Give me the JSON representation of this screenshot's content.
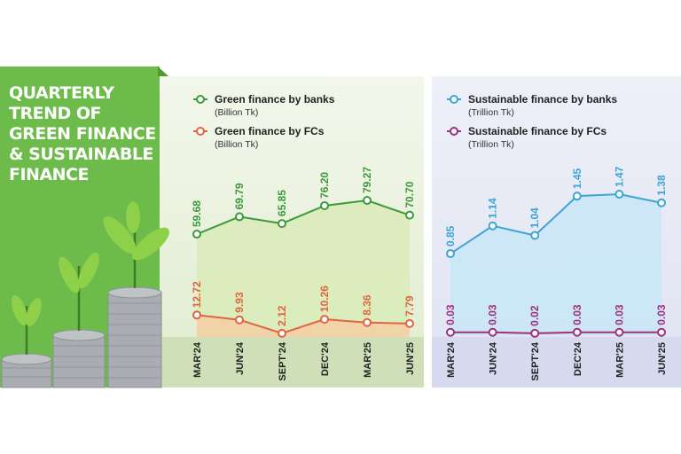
{
  "title": "QUARTERLY TREND OF GREEN FINANCE & SUSTAINABLE FINANCE",
  "chart_data": [
    {
      "type": "line",
      "categories": [
        "MAR'24",
        "JUN'24",
        "SEPT'24",
        "DEC'24",
        "MAR'25",
        "JUN'25"
      ],
      "series": [
        {
          "name": "Green finance by banks",
          "unit": "(Billion Tk)",
          "color": "#3c9a3c",
          "area_color": "#d9ebb8",
          "values": [
            59.68,
            69.79,
            65.85,
            76.2,
            79.27,
            70.7
          ],
          "value_labels": [
            "59.68",
            "69.79",
            "65.85",
            "76.20",
            "79.27",
            "70.70"
          ]
        },
        {
          "name": "Green finance by FCs",
          "unit": "(Billion Tk)",
          "color": "#e0643f",
          "area_color": "#f6cfa6",
          "values": [
            12.72,
            9.93,
            2.12,
            10.26,
            8.36,
            7.79
          ]
        }
      ]
    },
    {
      "type": "line",
      "categories": [
        "MAR'24",
        "JUN'24",
        "SEPT'24",
        "DEC'24",
        "MAR'25",
        "JUN'25"
      ],
      "series": [
        {
          "name": "Sustainable finance by banks",
          "unit": "(Trillion Tk)",
          "color": "#3aa6d6",
          "area_color": "#c8e6f6",
          "values": [
            0.85,
            1.14,
            1.04,
            1.45,
            1.47,
            1.38
          ]
        },
        {
          "name": "Sustainable finance by FCs",
          "unit": "(Trillion Tk)",
          "color": "#a0307c",
          "values": [
            0.03,
            0.03,
            0.02,
            0.03,
            0.03,
            0.03
          ]
        }
      ]
    }
  ]
}
